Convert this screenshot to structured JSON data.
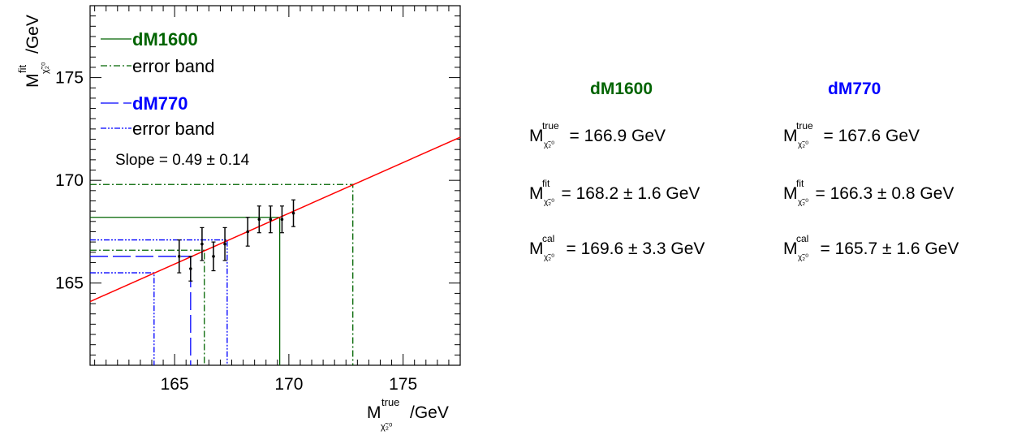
{
  "chart_data": {
    "type": "line",
    "xlabel": {
      "base": "M",
      "sup": "true",
      "sub": "χ̃₂⁰",
      "unit": "/GeV"
    },
    "ylabel": {
      "base": "M",
      "sup": "fit",
      "sub": "χ̃₂⁰",
      "unit": "/GeV"
    },
    "xlim": [
      161.3,
      177.5
    ],
    "ylim": [
      161.0,
      178.5
    ],
    "x_ticks": [
      165,
      170,
      175
    ],
    "y_ticks": [
      165,
      170,
      175
    ],
    "slope_text": "Slope = 0.49 ± 0.14",
    "fit_line": {
      "x": [
        161.3,
        177.5
      ],
      "y": [
        164.1,
        172.1
      ],
      "color": "#ff0000"
    },
    "points": [
      {
        "x": 165.2,
        "y": 166.3,
        "err": 0.8
      },
      {
        "x": 165.7,
        "y": 165.7,
        "err": 0.6
      },
      {
        "x": 166.2,
        "y": 166.9,
        "err": 0.8
      },
      {
        "x": 166.7,
        "y": 166.3,
        "err": 0.7
      },
      {
        "x": 167.2,
        "y": 166.9,
        "err": 0.8
      },
      {
        "x": 168.2,
        "y": 167.5,
        "err": 0.7
      },
      {
        "x": 168.7,
        "y": 168.1,
        "err": 0.65
      },
      {
        "x": 169.2,
        "y": 168.1,
        "err": 0.65
      },
      {
        "x": 169.7,
        "y": 168.1,
        "err": 0.65
      },
      {
        "x": 170.2,
        "y": 168.4,
        "err": 0.65
      }
    ],
    "series": [
      {
        "name": "dM1600",
        "color": "#006400",
        "style": "solid",
        "x": 169.6,
        "y": 168.2
      },
      {
        "name": "error band",
        "color": "#006400",
        "style": "dashdot",
        "x_lo": 166.3,
        "x_hi": 172.8,
        "y_lo": 166.6,
        "y_hi": 169.8
      },
      {
        "name": "dM770",
        "color": "#0000ff",
        "style": "dashed",
        "x": 165.7,
        "y": 166.3
      },
      {
        "name": "error band",
        "color": "#0000ff",
        "style": "dashdotdot",
        "x_lo": 164.1,
        "x_hi": 167.3,
        "y_lo": 165.5,
        "y_hi": 167.1
      }
    ],
    "legend": {
      "position": "top-left",
      "entries": [
        {
          "label": "dM1600",
          "color": "#006400",
          "bold": true,
          "style": "solid"
        },
        {
          "label": "error band",
          "color": "#006400",
          "bold": false,
          "style": "dashdot"
        },
        {
          "label": "dM770",
          "color": "#0000ff",
          "bold": true,
          "style": "dashed"
        },
        {
          "label": "error band",
          "color": "#0000ff",
          "bold": false,
          "style": "dashdotdot"
        }
      ]
    },
    "grid": false
  },
  "summary": {
    "symbol_base": "M",
    "symbol_sub": "χ̃₂⁰",
    "columns": [
      {
        "title": "dM1600",
        "color": "#006400",
        "rows": [
          {
            "sup": "true",
            "text": "= 166.9 GeV"
          },
          {
            "sup": "fit",
            "text": " = 168.2 ± 1.6 GeV"
          },
          {
            "sup": "cal",
            "text": "= 169.6 ± 3.3 GeV"
          }
        ]
      },
      {
        "title": "dM770",
        "color": "#0000ff",
        "rows": [
          {
            "sup": "true",
            "text": "= 167.6 GeV"
          },
          {
            "sup": "fit",
            "text": " = 166.3 ± 0.8 GeV"
          },
          {
            "sup": "cal",
            "text": "= 165.7 ± 1.6 GeV"
          }
        ]
      }
    ]
  }
}
